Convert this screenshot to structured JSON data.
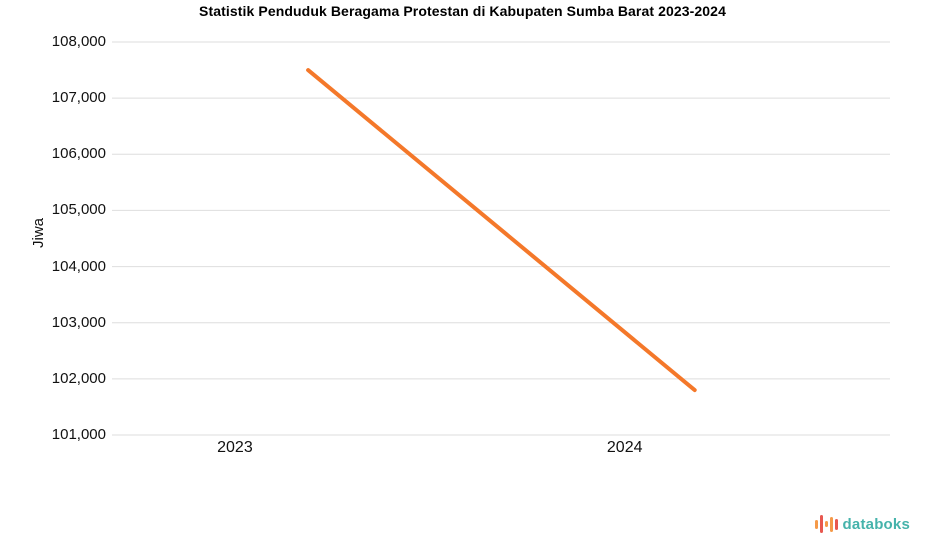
{
  "chart_data": {
    "type": "line",
    "title": "Statistik Penduduk Beragama Protestan di Kabupaten Sumba Barat 2023-2024",
    "xlabel": "",
    "ylabel": "Jiwa",
    "categories": [
      "2023",
      "2024"
    ],
    "series": [
      {
        "name": "",
        "values": [
          107500,
          101800
        ]
      }
    ],
    "ylim": [
      101000,
      108000
    ],
    "yticks": [
      101000,
      102000,
      103000,
      104000,
      105000,
      106000,
      107000,
      108000
    ],
    "grid": "horizontal",
    "legend": "none",
    "colors": {
      "line": "#f4782a",
      "grid": "#dedede",
      "axis_text": "#111111",
      "title_text": "#000000"
    }
  },
  "footer": {
    "brand": "databoks",
    "brand_color": "#45b3ab",
    "icon_bars": [
      {
        "h": 9,
        "color": "#f59a49"
      },
      {
        "h": 18,
        "color": "#e8584f"
      },
      {
        "h": 6,
        "color": "#f59a49"
      },
      {
        "h": 15,
        "color": "#f59a49"
      },
      {
        "h": 11,
        "color": "#e8584f"
      }
    ]
  }
}
